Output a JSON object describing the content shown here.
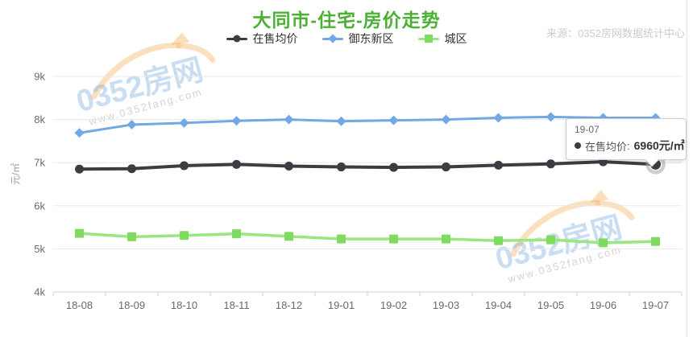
{
  "chart": {
    "title": "大同市-住宅-房价走势",
    "title_color": "#4bb135",
    "source": "来源：0352房网数据统计中心",
    "ylabel": "元/㎡"
  },
  "legend": {
    "items": [
      "在售均价",
      "御东新区",
      "城区"
    ]
  },
  "tooltip": {
    "date": "19-07",
    "series_label": "在售均价",
    "separator": ":",
    "value": "6960元/㎡"
  },
  "watermark": {
    "brand": "0352房网",
    "url": "www.0352fang.com"
  },
  "chart_data": {
    "type": "line",
    "title": "大同市-住宅-房价走势",
    "categories": [
      "18-08",
      "18-09",
      "18-10",
      "18-11",
      "18-12",
      "19-01",
      "19-02",
      "19-03",
      "19-04",
      "19-05",
      "19-06",
      "19-07"
    ],
    "series": [
      {
        "name": "在售均价",
        "color": "#3d3c43",
        "marker": "circle",
        "values": [
          6850,
          6860,
          6930,
          6960,
          6920,
          6900,
          6890,
          6900,
          6940,
          6970,
          7020,
          6960
        ]
      },
      {
        "name": "御东新区",
        "color": "#74a8e5",
        "marker": "diamond",
        "values": [
          7690,
          7880,
          7920,
          7970,
          8000,
          7960,
          7980,
          8000,
          8040,
          8060,
          8040,
          8040
        ]
      },
      {
        "name": "城区",
        "color": "#7edb5f",
        "line_color": "#9ae77f",
        "marker": "square",
        "values": [
          5360,
          5280,
          5310,
          5350,
          5290,
          5230,
          5230,
          5230,
          5190,
          5210,
          5140,
          5170
        ]
      }
    ],
    "xlabel": "",
    "ylabel": "元/㎡",
    "ylim": [
      4000,
      9000
    ],
    "ytick_labels": [
      "4k",
      "5k",
      "6k",
      "7k",
      "8k",
      "9k"
    ],
    "grid": true,
    "legend_position": "top",
    "highlight": {
      "series": "在售均价",
      "category": "19-07",
      "value": 6960,
      "value_text": "6960元/㎡"
    }
  }
}
